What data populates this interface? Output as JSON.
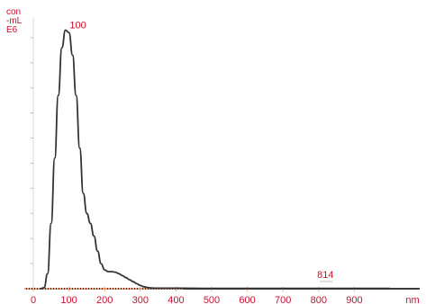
{
  "chart_data": {
    "type": "line",
    "ylabel": [
      "con",
      "-mL",
      "E6"
    ],
    "xlabel": "",
    "x_unit_label": "nm",
    "xlim": [
      0,
      1000
    ],
    "ylim": [
      0,
      1.1
    ],
    "x_ticks": [
      0,
      100,
      200,
      300,
      400,
      500,
      600,
      700,
      800,
      900
    ],
    "x_tick_labels": [
      "0",
      "100",
      "200",
      "300",
      "400",
      "500",
      "600",
      "700",
      "800",
      "900"
    ],
    "series": [
      {
        "x": [
          20,
          30,
          40,
          50,
          60,
          70,
          80,
          90,
          100,
          110,
          120,
          130,
          140,
          150,
          160,
          170,
          180,
          190,
          200,
          210,
          220,
          230,
          240,
          250,
          260,
          270,
          280,
          290,
          300,
          310,
          320,
          330,
          340,
          350,
          400,
          500,
          600,
          700,
          800,
          900,
          1000
        ],
        "y": [
          0,
          0.004,
          0.06,
          0.26,
          0.52,
          0.77,
          0.96,
          1.03,
          1.02,
          0.93,
          0.77,
          0.56,
          0.38,
          0.3,
          0.26,
          0.21,
          0.15,
          0.1,
          0.075,
          0.068,
          0.068,
          0.066,
          0.06,
          0.052,
          0.044,
          0.036,
          0.028,
          0.02,
          0.013,
          0.008,
          0.005,
          0.003,
          0.002,
          0.002,
          0.002,
          0.001,
          0.001,
          0.001,
          0.001,
          0.001,
          0.001
        ]
      }
    ],
    "annotations": [
      {
        "text": "100",
        "x": 100,
        "y": 1.03
      },
      {
        "text": "814",
        "x": 814,
        "y": 0.02
      }
    ],
    "colors": {
      "line": "#333333",
      "axis": "#f2a27a",
      "text": "#c8102e"
    }
  }
}
